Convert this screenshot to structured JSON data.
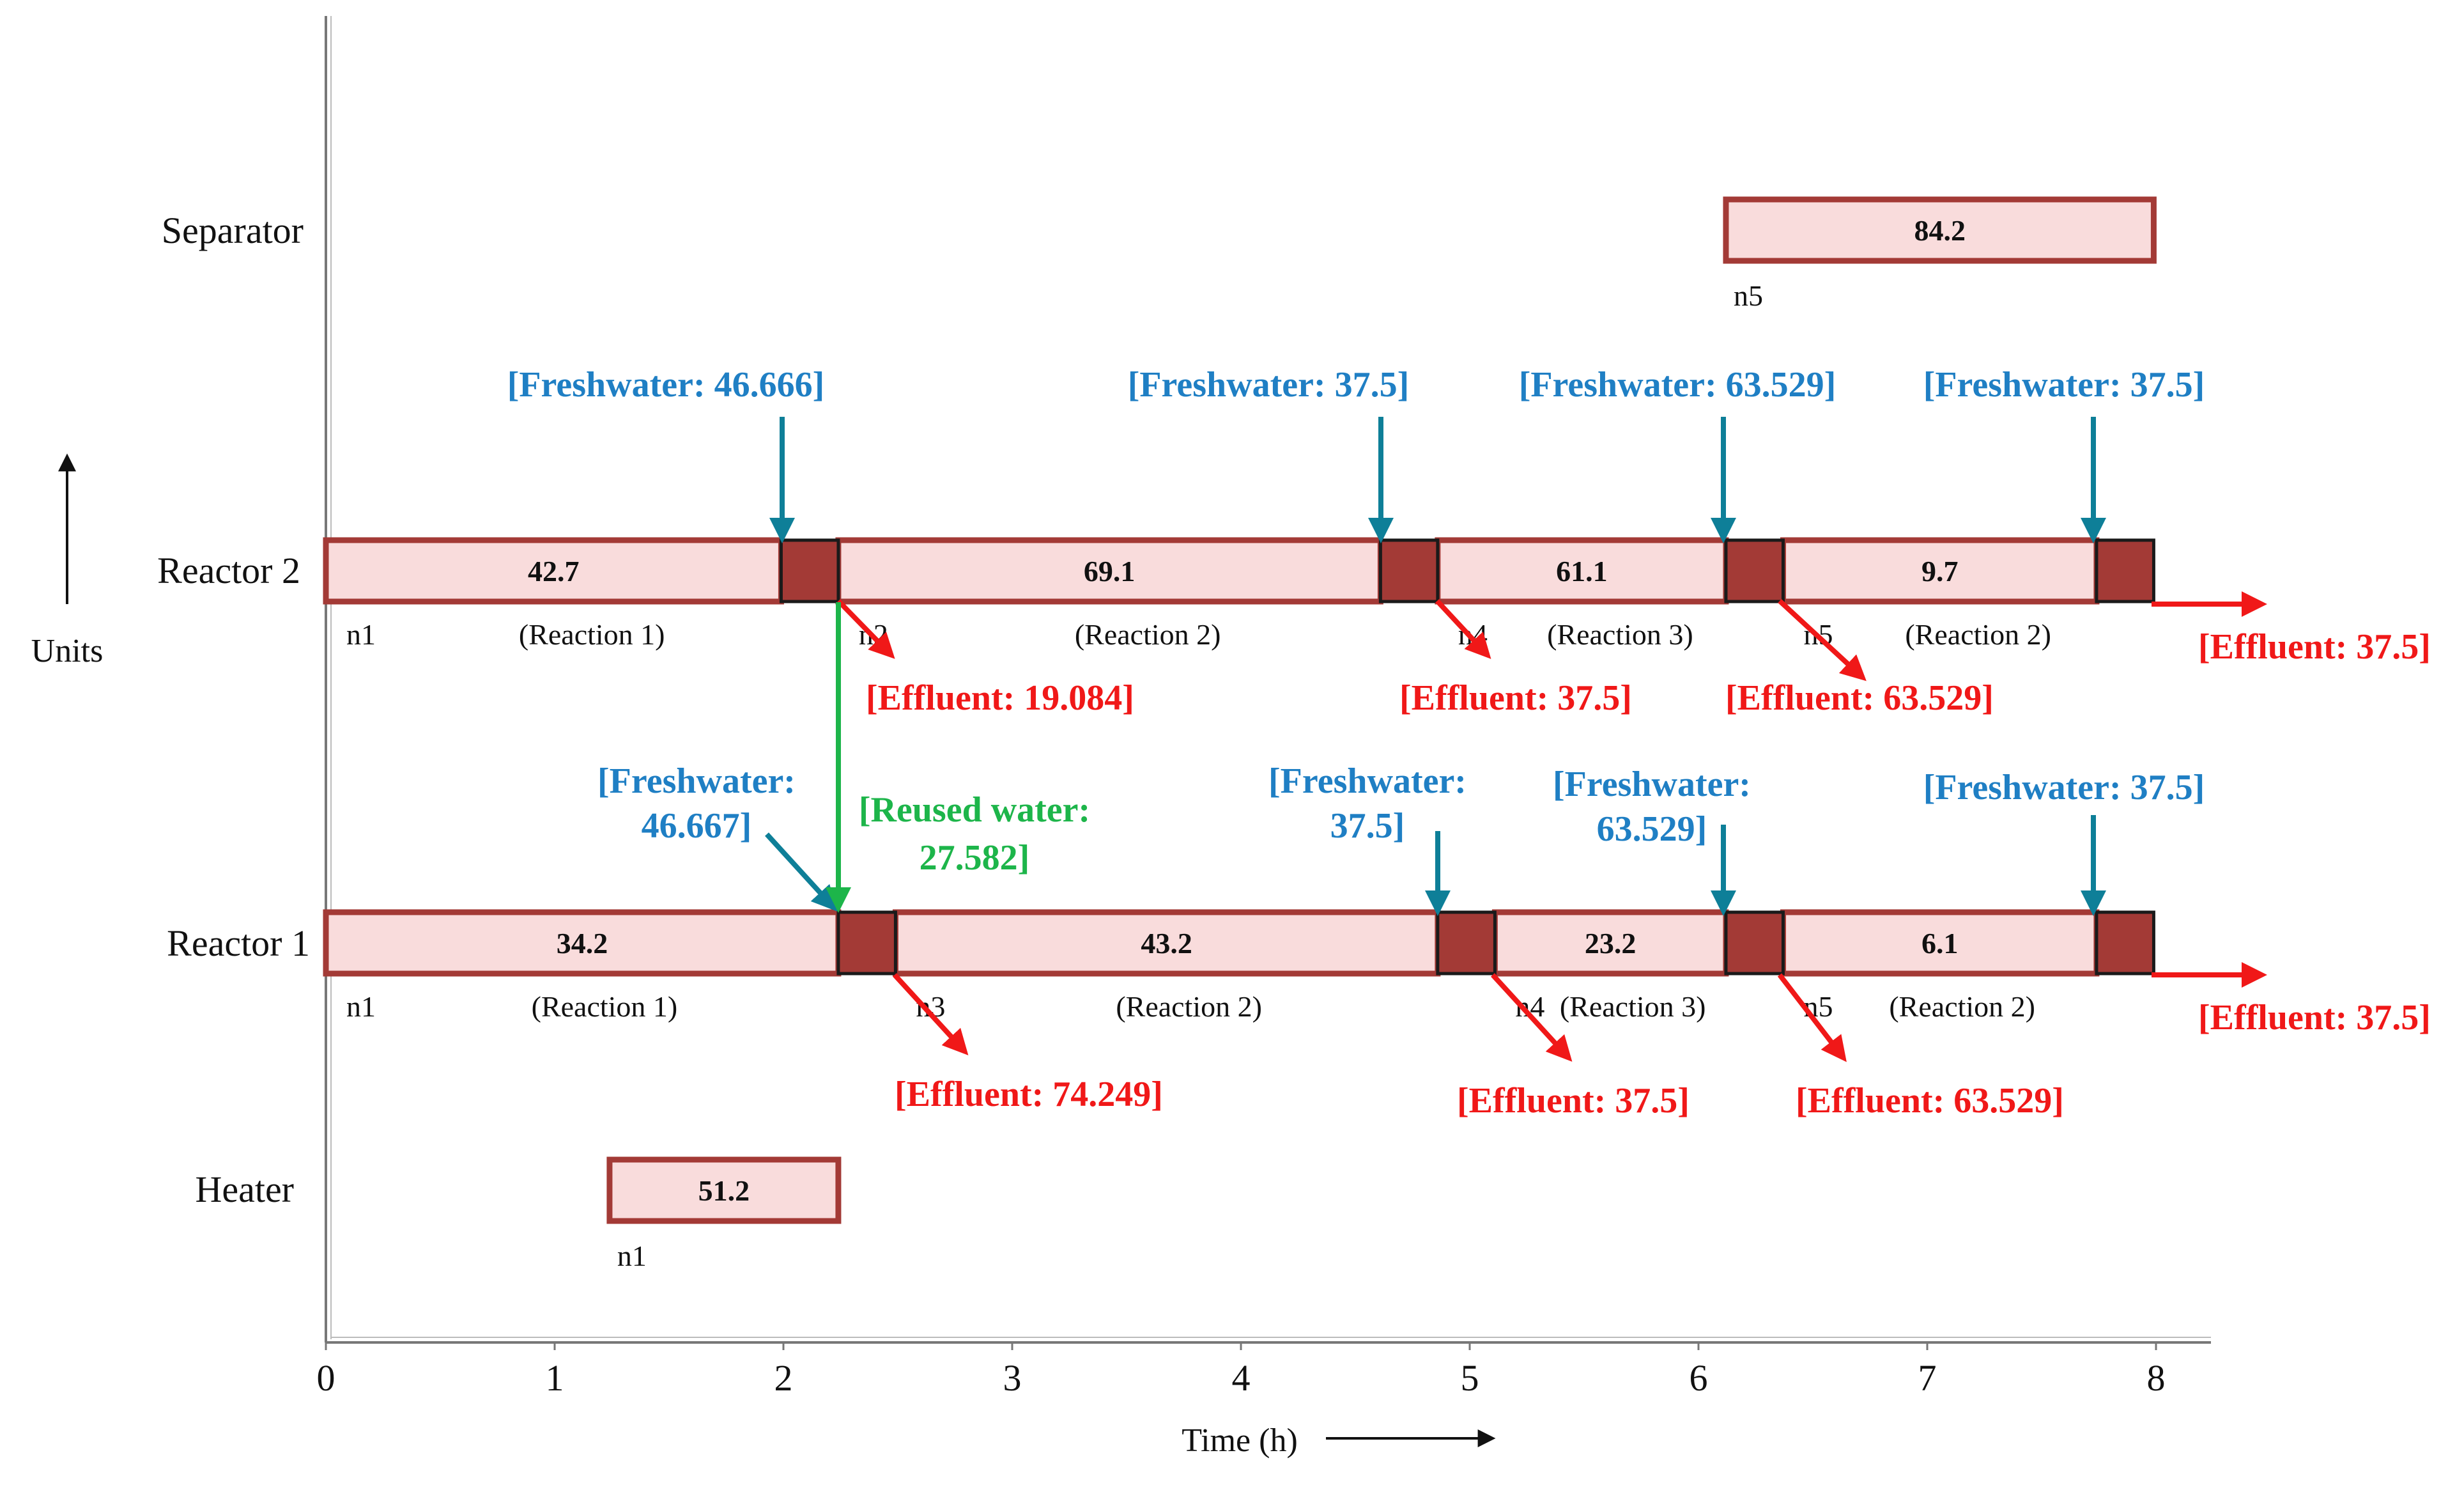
{
  "colors": {
    "task_fill": "#f9dcdc",
    "task_border": "#a33a36",
    "transfer_block": "#a33a36",
    "freshwater": "#0e7f98",
    "freshwater_text": "#1f7fc4",
    "effluent": "#f01818",
    "reused": "#1db54a",
    "axis": "#777777"
  },
  "axes": {
    "y_title": "Units",
    "x_title": "Time (h)",
    "x_range": [
      0,
      8
    ],
    "x_ticks": [
      "0",
      "1",
      "2",
      "3",
      "4",
      "5",
      "6",
      "7",
      "8"
    ]
  },
  "units": [
    {
      "id": "separator",
      "label": "Separator"
    },
    {
      "id": "reactor2",
      "label": "Reactor 2"
    },
    {
      "id": "reactor1",
      "label": "Reactor 1"
    },
    {
      "id": "heater",
      "label": "Heater"
    }
  ],
  "tasks": [
    {
      "unit": "separator",
      "start": 6.12,
      "end": 7.99,
      "value": "84.2",
      "node": "n5"
    },
    {
      "unit": "reactor2",
      "start": 0.0,
      "end": 1.99,
      "value": "42.7",
      "node": "n1",
      "reaction": "(Reaction 1)"
    },
    {
      "unit": "reactor2",
      "start": 2.24,
      "end": 4.61,
      "value": "69.1",
      "node": "n2",
      "reaction": "(Reaction 2)"
    },
    {
      "unit": "reactor2",
      "start": 4.86,
      "end": 6.12,
      "value": "61.1",
      "node": "n4",
      "reaction": "(Reaction 3)"
    },
    {
      "unit": "reactor2",
      "start": 6.37,
      "end": 7.74,
      "value": "9.7",
      "node": "n5",
      "reaction": "(Reaction 2)"
    },
    {
      "unit": "reactor1",
      "start": 0.0,
      "end": 2.24,
      "value": "34.2",
      "node": "n1",
      "reaction": "(Reaction 1)"
    },
    {
      "unit": "reactor1",
      "start": 2.49,
      "end": 4.86,
      "value": "43.2",
      "node": "n3",
      "reaction": "(Reaction 2)"
    },
    {
      "unit": "reactor1",
      "start": 5.11,
      "end": 6.12,
      "value": "23.2",
      "node": "n4",
      "reaction": "(Reaction 3)"
    },
    {
      "unit": "reactor1",
      "start": 6.37,
      "end": 7.74,
      "value": "6.1",
      "node": "n5",
      "reaction": "(Reaction 2)"
    },
    {
      "unit": "heater",
      "start": 1.24,
      "end": 2.24,
      "value": "51.2",
      "node": "n1"
    }
  ],
  "transfers": [
    {
      "unit": "reactor2",
      "start": 1.99,
      "end": 2.24
    },
    {
      "unit": "reactor2",
      "start": 4.61,
      "end": 4.86
    },
    {
      "unit": "reactor2",
      "start": 6.12,
      "end": 6.37
    },
    {
      "unit": "reactor2",
      "start": 7.74,
      "end": 7.99
    },
    {
      "unit": "reactor1",
      "start": 2.24,
      "end": 2.49
    },
    {
      "unit": "reactor1",
      "start": 4.86,
      "end": 5.11
    },
    {
      "unit": "reactor1",
      "start": 6.12,
      "end": 6.37
    },
    {
      "unit": "reactor1",
      "start": 7.74,
      "end": 7.99
    }
  ],
  "freshwater": [
    {
      "unit": "reactor2",
      "time": 1.99,
      "lines": [
        "[Freshwater: 46.666]"
      ]
    },
    {
      "unit": "reactor2",
      "time": 4.61,
      "lines": [
        "[Freshwater: 37.5]"
      ]
    },
    {
      "unit": "reactor2",
      "time": 6.12,
      "lines": [
        "[Freshwater: 63.529]"
      ]
    },
    {
      "unit": "reactor2",
      "time": 7.74,
      "lines": [
        "[Freshwater: 37.5]"
      ]
    },
    {
      "unit": "reactor1",
      "time": 2.24,
      "lines": [
        "[Freshwater:",
        "46.667]"
      ]
    },
    {
      "unit": "reactor1",
      "time": 4.86,
      "lines": [
        "[Freshwater:",
        "37.5]"
      ]
    },
    {
      "unit": "reactor1",
      "time": 6.12,
      "lines": [
        "[Freshwater:",
        "63.529]"
      ]
    },
    {
      "unit": "reactor1",
      "time": 7.74,
      "lines": [
        "[Freshwater: 37.5]"
      ]
    }
  ],
  "effluents": [
    {
      "unit": "reactor2",
      "label": "[Effluent: 19.084]"
    },
    {
      "unit": "reactor2",
      "label": "[Effluent: 37.5]"
    },
    {
      "unit": "reactor2",
      "label": "[Effluent: 63.529]"
    },
    {
      "unit": "reactor2",
      "label": "[Effluent: 37.5]"
    },
    {
      "unit": "reactor1",
      "label": "[Effluent: 74.249]"
    },
    {
      "unit": "reactor1",
      "label": "[Effluent: 37.5]"
    },
    {
      "unit": "reactor1",
      "label": "[Effluent: 63.529]"
    },
    {
      "unit": "reactor1",
      "label": "[Effluent: 37.5]"
    }
  ],
  "reused_water": {
    "from": "reactor2",
    "to": "reactor1",
    "time": 2.24,
    "lines": [
      "[Reused water:",
      "27.582]"
    ]
  }
}
